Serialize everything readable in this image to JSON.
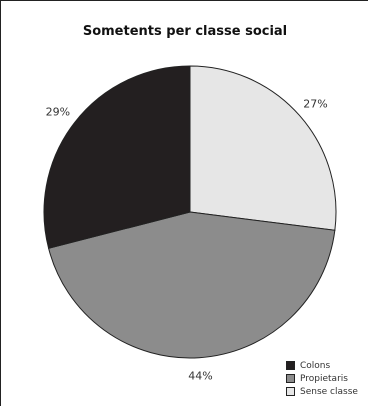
{
  "chart_data": {
    "type": "pie",
    "title": "Sometents per classe social",
    "categories": [
      "Colons",
      "Propietaris",
      "Sense classe"
    ],
    "values": [
      29,
      44,
      27
    ],
    "value_labels": [
      "29%",
      "44%",
      "27%"
    ],
    "colors": [
      "#231f20",
      "#8c8c8c",
      "#e6e6e6"
    ],
    "legend_position": "bottom-right"
  }
}
